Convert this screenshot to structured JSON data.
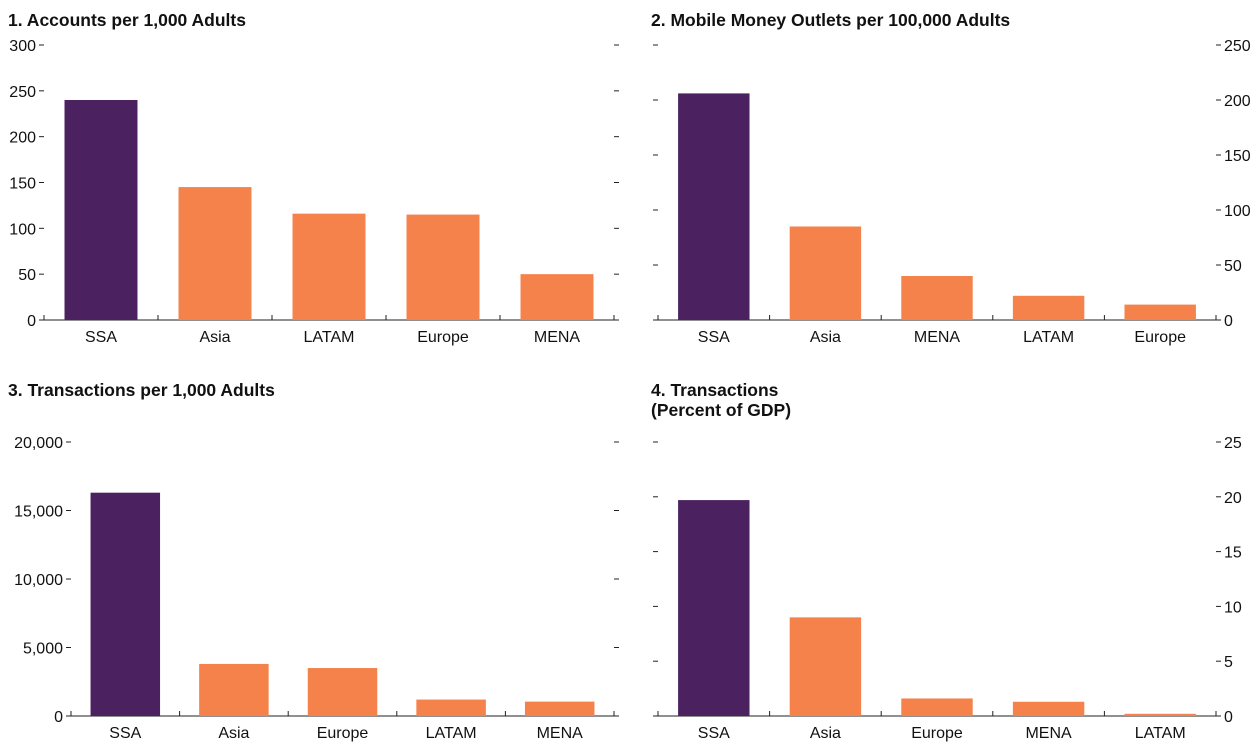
{
  "colors": {
    "highlight": "#4b2160",
    "bar": "#f4824a",
    "axis": "#222222"
  },
  "chart_data": [
    {
      "type": "bar",
      "title": "1. Accounts per 1,000 Adults",
      "categories": [
        "SSA",
        "Asia",
        "LATAM",
        "Europe",
        "MENA"
      ],
      "values": [
        240,
        145,
        116,
        115,
        50
      ],
      "ylim": [
        0,
        300
      ],
      "yticks": [
        0,
        50,
        100,
        150,
        200,
        250,
        300
      ],
      "ytick_labels": [
        "0",
        "50",
        "100",
        "150",
        "200",
        "250",
        "300"
      ],
      "y_label_side": "left",
      "highlight_index": 0
    },
    {
      "type": "bar",
      "title": "2. Mobile Money Outlets per 100,000 Adults",
      "categories": [
        "SSA",
        "Asia",
        "MENA",
        "LATAM",
        "Europe"
      ],
      "values": [
        206,
        85,
        40,
        22,
        14
      ],
      "ylim": [
        0,
        250
      ],
      "yticks": [
        0,
        50,
        100,
        150,
        200,
        250
      ],
      "ytick_labels": [
        "0",
        "50",
        "100",
        "150",
        "200",
        "250"
      ],
      "y_label_side": "right",
      "highlight_index": 0
    },
    {
      "type": "bar",
      "title": "3. Transactions per 1,000 Adults",
      "categories": [
        "SSA",
        "Asia",
        "Europe",
        "LATAM",
        "MENA"
      ],
      "values": [
        16300,
        3800,
        3500,
        1200,
        1050
      ],
      "ylim": [
        0,
        20000
      ],
      "yticks": [
        0,
        5000,
        10000,
        15000,
        20000
      ],
      "ytick_labels": [
        "0",
        "5,000",
        "10,000",
        "15,000",
        "20,000"
      ],
      "y_label_side": "left",
      "highlight_index": 0
    },
    {
      "type": "bar",
      "title": "4. Transactions",
      "subtitle": "(Percent of GDP)",
      "categories": [
        "SSA",
        "Asia",
        "Europe",
        "MENA",
        "LATAM"
      ],
      "values": [
        19.7,
        9.0,
        1.6,
        1.3,
        0.2
      ],
      "ylim": [
        0,
        25
      ],
      "yticks": [
        0,
        5,
        10,
        15,
        20,
        25
      ],
      "ytick_labels": [
        "0",
        "5",
        "10",
        "15",
        "20",
        "25"
      ],
      "y_label_side": "right",
      "highlight_index": 0
    }
  ]
}
